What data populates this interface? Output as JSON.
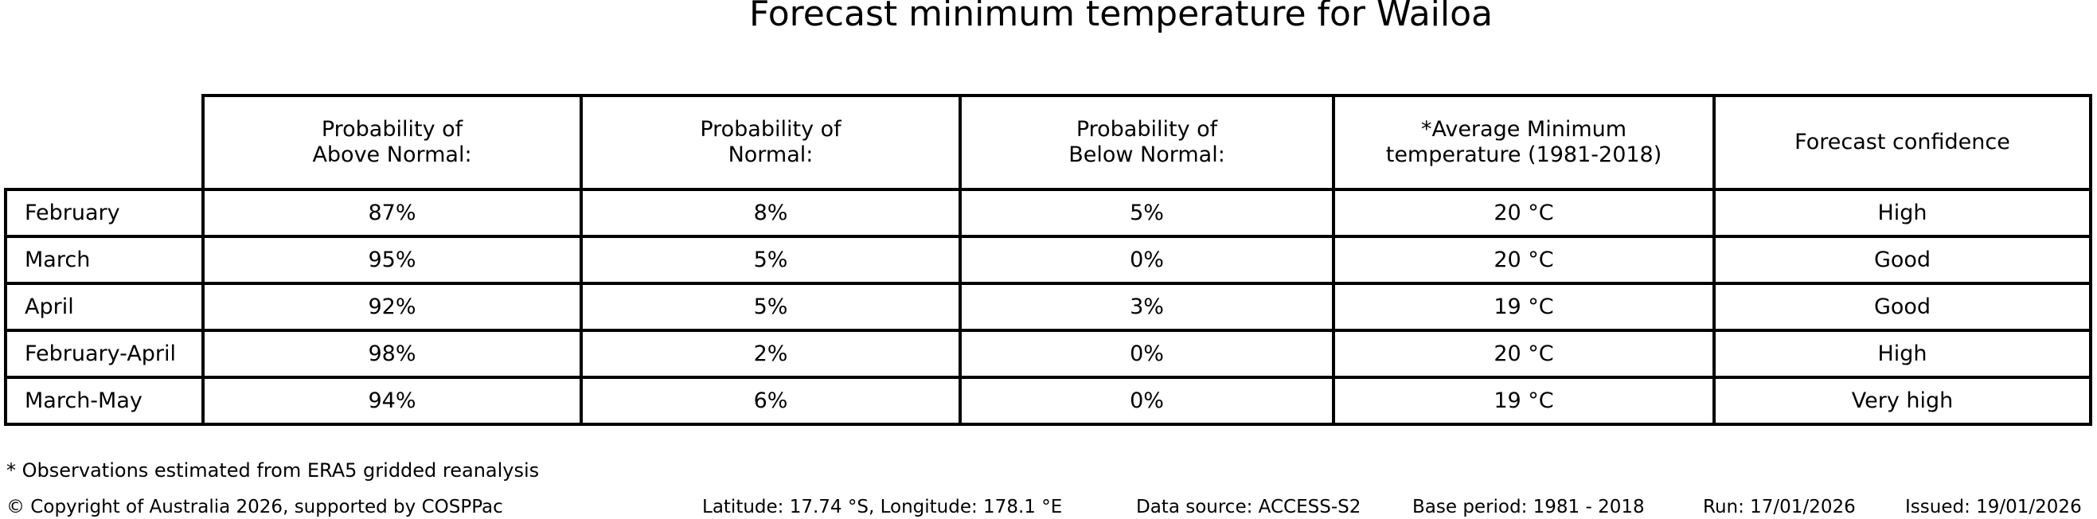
{
  "chart_data": {
    "type": "table",
    "title": "Forecast minimum temperature for Wailoa",
    "columns": [
      "",
      "Probability of\nAbove Normal:",
      "Probability of\nNormal:",
      "Probability of\nBelow Normal:",
      "*Average Minimum\ntemperature (1981-2018)",
      "Forecast confidence"
    ],
    "rows": [
      [
        "February",
        "87%",
        "8%",
        "5%",
        "20 °C",
        "High"
      ],
      [
        "March",
        "95%",
        "5%",
        "0%",
        "20 °C",
        "Good"
      ],
      [
        "April",
        "92%",
        "5%",
        "3%",
        "19 °C",
        "Good"
      ],
      [
        "February-April",
        "98%",
        "2%",
        "0%",
        "20 °C",
        "High"
      ],
      [
        "March-May",
        "94%",
        "6%",
        "0%",
        "19 °C",
        "Very high"
      ]
    ],
    "footnote": "* Observations estimated from ERA5 gridded reanalysis",
    "legend_position": "none",
    "grid": "table-borders"
  },
  "footer": {
    "copyright": "© Copyright of Australia 2026, supported by COSPPac",
    "location": "Latitude: 17.74 °S, Longitude: 178.1 °E",
    "data_source": "Data source: ACCESS-S2",
    "base_period": "Base period: 1981 - 2018",
    "run": "Run: 17/01/2026",
    "issued": "Issued: 19/01/2026"
  },
  "colors": {
    "background": "#ffffff",
    "text": "#000000",
    "border": "#000000"
  }
}
